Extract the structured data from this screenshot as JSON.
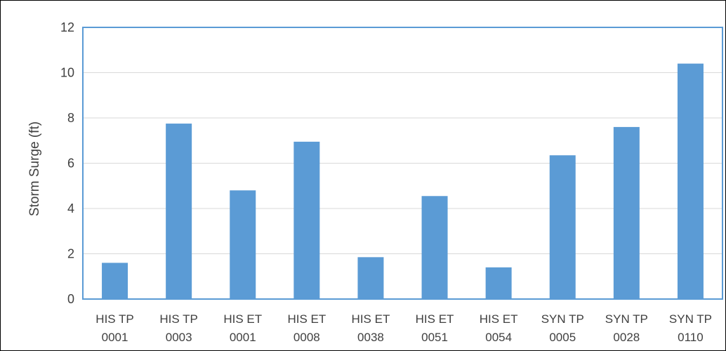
{
  "chart_data": {
    "type": "bar",
    "categories": [
      [
        "HIS TP",
        "0001"
      ],
      [
        "HIS TP",
        "0003"
      ],
      [
        "HIS ET",
        "0001"
      ],
      [
        "HIS ET",
        "0008"
      ],
      [
        "HIS ET",
        "0038"
      ],
      [
        "HIS ET",
        "0051"
      ],
      [
        "HIS ET",
        "0054"
      ],
      [
        "SYN TP",
        "0005"
      ],
      [
        "SYN TP",
        "0028"
      ],
      [
        "SYN TP",
        "0110"
      ]
    ],
    "values": [
      1.6,
      7.75,
      4.8,
      6.95,
      1.85,
      4.55,
      1.4,
      6.35,
      7.6,
      10.4
    ],
    "title": "",
    "xlabel": "",
    "ylabel": "Storm Surge (ft)",
    "ylim": [
      0,
      12
    ],
    "yticks": [
      0,
      2,
      4,
      6,
      8,
      10,
      12
    ],
    "grid": true,
    "legend": "none",
    "colors": {
      "bar": "#5b9bd5",
      "grid": "#d9d9d9",
      "plot_border": "#5b9bd5",
      "text": "#404040"
    }
  }
}
